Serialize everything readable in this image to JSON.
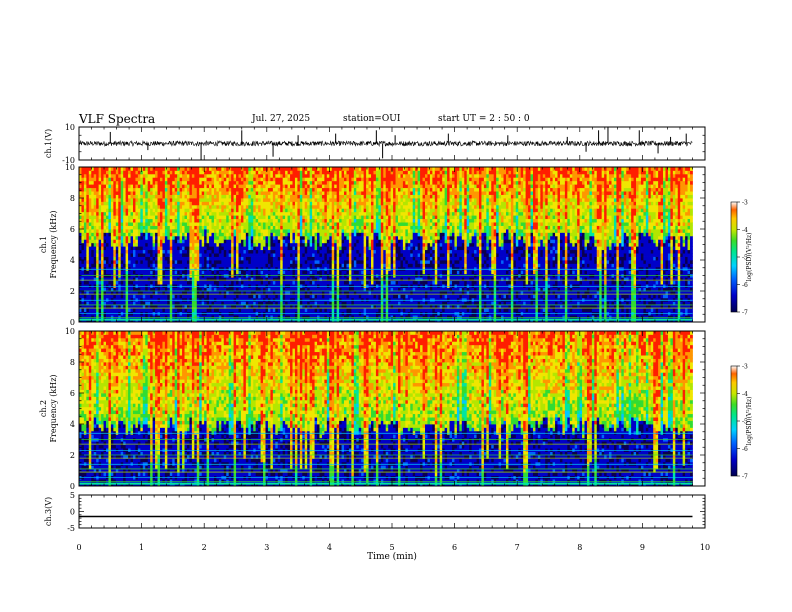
{
  "header": {
    "title": "VLF Spectra",
    "date": "Jul. 27, 2025",
    "station": "station=OUI",
    "start_ut": "start UT =  2 : 50 : 0"
  },
  "chart_data": [
    {
      "type": "line",
      "panel": "ch1-waveform",
      "ylabel": "ch.1(V)",
      "ylim": [
        -10,
        10
      ],
      "yticks": [
        10,
        -10
      ],
      "xlim": [
        0,
        9.8
      ],
      "baseline": 0,
      "noise_amplitude": 1.5,
      "spikes": [
        [
          0.5,
          7
        ],
        [
          1.1,
          -4
        ],
        [
          1.95,
          -10
        ],
        [
          2.6,
          8
        ],
        [
          3.1,
          -8
        ],
        [
          3.5,
          5
        ],
        [
          4.1,
          6
        ],
        [
          4.75,
          8
        ],
        [
          4.85,
          -9
        ],
        [
          5.05,
          5
        ],
        [
          5.9,
          6
        ],
        [
          6.85,
          5
        ],
        [
          7.8,
          4
        ],
        [
          8.1,
          -5
        ],
        [
          8.3,
          8
        ],
        [
          8.45,
          10
        ],
        [
          8.95,
          8
        ],
        [
          9.25,
          -6
        ],
        [
          9.45,
          4
        ],
        [
          9.7,
          6
        ]
      ],
      "color": "#000000"
    },
    {
      "type": "heatmap",
      "panel": "ch1-spectrogram",
      "ylabel_top": "ch.1",
      "ylabel": "Frequency (kHz)",
      "ylim": [
        0,
        10
      ],
      "yticks": [
        0,
        2,
        4,
        6,
        8,
        10
      ],
      "xlim": [
        0,
        9.8
      ],
      "noise_floor_khz": 5.3,
      "colorbar": {
        "label": "log(PSD)(V²/Hz)",
        "ticks": [
          -3,
          -4,
          -5,
          -6,
          -7
        ],
        "range": [
          -7,
          -3
        ]
      }
    },
    {
      "type": "heatmap",
      "panel": "ch2-spectrogram",
      "ylabel_top": "ch.2",
      "ylabel": "Frequency (kHz)",
      "ylim": [
        0,
        10
      ],
      "yticks": [
        0,
        2,
        4,
        6,
        8,
        10
      ],
      "xlim": [
        0,
        9.8
      ],
      "noise_floor_khz": 3.8,
      "colorbar": {
        "label": "log(PSD)(V²/Hz)",
        "ticks": [
          -3,
          -4,
          -5,
          -6,
          -7
        ],
        "range": [
          -7,
          -3
        ]
      }
    },
    {
      "type": "line",
      "panel": "ch3-waveform",
      "ylabel": "ch.3(V)",
      "ylim": [
        -5,
        5
      ],
      "yticks": [
        5,
        0,
        -5
      ],
      "xlim": [
        0,
        9.8
      ],
      "value": -1.5,
      "color": "#000000",
      "xlabel": "Time (min)",
      "xticks": [
        0,
        1,
        2,
        3,
        4,
        5,
        6,
        7,
        8,
        9,
        10
      ]
    }
  ],
  "colors": {
    "colormap": [
      "#0a0050",
      "#0000c8",
      "#0064ff",
      "#00c8ff",
      "#00e6a0",
      "#32dc32",
      "#b4e600",
      "#f0e600",
      "#ff9600",
      "#ff1e00"
    ]
  }
}
